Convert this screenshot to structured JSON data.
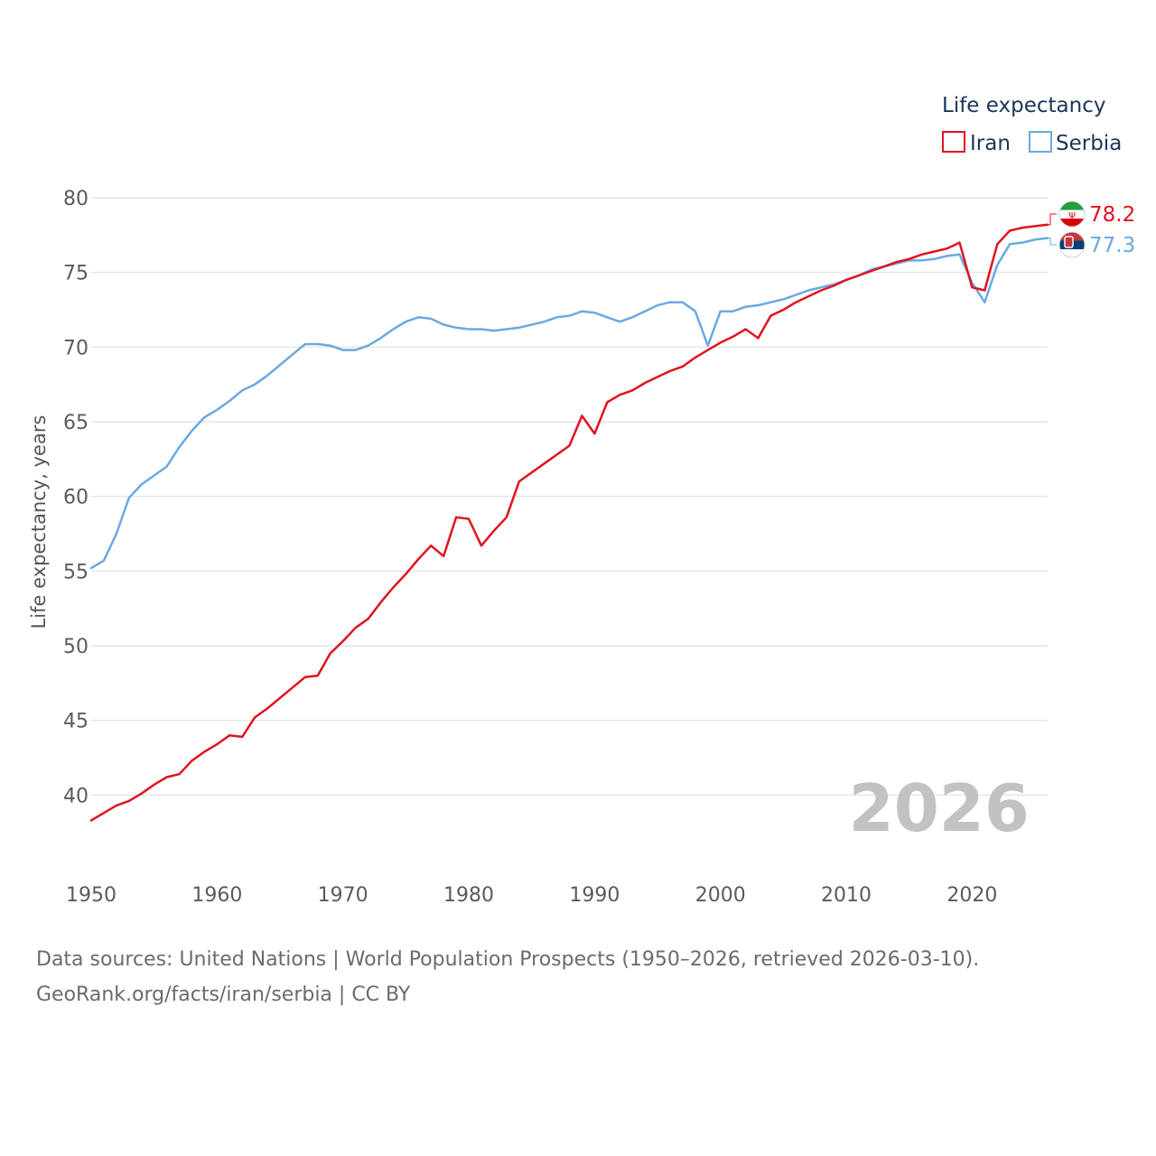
{
  "colors": {
    "iran": "#e0131f",
    "serbia": "#6aa9e3",
    "grid": "#e6e6e6",
    "watermark": "#c2c2c2"
  },
  "legend": {
    "title": "Life expectancy",
    "items": [
      {
        "key": "iran",
        "label": "Iran",
        "color": "#e0131f"
      },
      {
        "key": "serbia",
        "label": "Serbia",
        "color": "#6aa9e3"
      }
    ]
  },
  "watermark_year": "2026",
  "footer": {
    "line1": "Data sources: United Nations | World Population Prospects (1950–2026, retrieved 2026-03-10).",
    "line2": "GeoRank.org/facts/iran/serbia | CC BY"
  },
  "chart_data": {
    "type": "line",
    "title": "",
    "xlabel": "",
    "ylabel": "Life expectancy, years",
    "xlim": [
      1950,
      2026
    ],
    "ylim": [
      35,
      80
    ],
    "x_ticks": [
      1950,
      1960,
      1970,
      1980,
      1990,
      2000,
      2010,
      2020
    ],
    "y_ticks": [
      40,
      45,
      50,
      55,
      60,
      65,
      70,
      75,
      80
    ],
    "grid": true,
    "legend_position": "top-right",
    "end_labels": {
      "iran": "78.2",
      "serbia": "77.3"
    },
    "series": [
      {
        "name": "Iran",
        "key": "iran",
        "x": [
          1950,
          1951,
          1952,
          1953,
          1954,
          1955,
          1956,
          1957,
          1958,
          1959,
          1960,
          1961,
          1962,
          1963,
          1964,
          1965,
          1966,
          1967,
          1968,
          1969,
          1970,
          1971,
          1972,
          1973,
          1974,
          1975,
          1976,
          1977,
          1978,
          1979,
          1980,
          1981,
          1982,
          1983,
          1984,
          1985,
          1986,
          1987,
          1988,
          1989,
          1990,
          1991,
          1992,
          1993,
          1994,
          1995,
          1996,
          1997,
          1998,
          1999,
          2000,
          2001,
          2002,
          2003,
          2004,
          2005,
          2006,
          2007,
          2008,
          2009,
          2010,
          2011,
          2012,
          2013,
          2014,
          2015,
          2016,
          2017,
          2018,
          2019,
          2020,
          2021,
          2022,
          2023,
          2024,
          2025,
          2026
        ],
        "values": [
          38.3,
          38.8,
          39.3,
          39.6,
          40.1,
          40.7,
          41.2,
          41.4,
          42.3,
          42.9,
          43.4,
          44.0,
          43.9,
          45.2,
          45.8,
          46.5,
          47.2,
          47.9,
          48.0,
          49.5,
          50.3,
          51.2,
          51.8,
          52.9,
          53.9,
          54.8,
          55.8,
          56.7,
          56.0,
          58.6,
          58.5,
          56.7,
          57.7,
          58.6,
          61.0,
          61.6,
          62.2,
          62.8,
          63.4,
          65.4,
          64.2,
          66.3,
          66.8,
          67.1,
          67.6,
          68.0,
          68.4,
          68.7,
          69.3,
          69.8,
          70.3,
          70.7,
          71.2,
          70.6,
          72.1,
          72.5,
          73.0,
          73.4,
          73.8,
          74.1,
          74.5,
          74.8,
          75.1,
          75.4,
          75.7,
          75.9,
          76.2,
          76.4,
          76.6,
          77.0,
          74.0,
          73.8,
          76.9,
          77.8,
          78.0,
          78.1,
          78.2
        ]
      },
      {
        "name": "Serbia",
        "key": "serbia",
        "x": [
          1950,
          1951,
          1952,
          1953,
          1954,
          1955,
          1956,
          1957,
          1958,
          1959,
          1960,
          1961,
          1962,
          1963,
          1964,
          1965,
          1966,
          1967,
          1968,
          1969,
          1970,
          1971,
          1972,
          1973,
          1974,
          1975,
          1976,
          1977,
          1978,
          1979,
          1980,
          1981,
          1982,
          1983,
          1984,
          1985,
          1986,
          1987,
          1988,
          1989,
          1990,
          1991,
          1992,
          1993,
          1994,
          1995,
          1996,
          1997,
          1998,
          1999,
          2000,
          2001,
          2002,
          2003,
          2004,
          2005,
          2006,
          2007,
          2008,
          2009,
          2010,
          2011,
          2012,
          2013,
          2014,
          2015,
          2016,
          2017,
          2018,
          2019,
          2020,
          2021,
          2022,
          2023,
          2024,
          2025,
          2026
        ],
        "values": [
          55.2,
          55.7,
          57.5,
          59.9,
          60.8,
          61.4,
          62.0,
          63.3,
          64.4,
          65.3,
          65.8,
          66.4,
          67.1,
          67.5,
          68.1,
          68.8,
          69.5,
          70.2,
          70.2,
          70.1,
          69.8,
          69.8,
          70.1,
          70.6,
          71.2,
          71.7,
          72.0,
          71.9,
          71.5,
          71.3,
          71.2,
          71.2,
          71.1,
          71.2,
          71.3,
          71.5,
          71.7,
          72.0,
          72.1,
          72.4,
          72.3,
          72.0,
          71.7,
          72.0,
          72.4,
          72.8,
          73.0,
          73.0,
          72.4,
          70.1,
          72.4,
          72.4,
          72.7,
          72.8,
          73.0,
          73.2,
          73.5,
          73.8,
          74.0,
          74.2,
          74.5,
          74.8,
          75.2,
          75.4,
          75.6,
          75.8,
          75.8,
          75.9,
          76.1,
          76.2,
          74.3,
          73.0,
          75.5,
          76.9,
          77.0,
          77.2,
          77.3
        ]
      }
    ]
  }
}
